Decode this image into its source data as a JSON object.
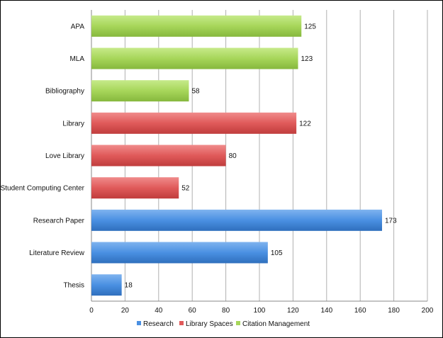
{
  "chart_data": {
    "type": "bar",
    "orientation": "horizontal",
    "categories": [
      "APA",
      "MLA",
      "Bibliography",
      "Library",
      "Love Library",
      "Student Computing Center",
      "Research Paper",
      "Literature Review",
      "Thesis"
    ],
    "values": [
      125,
      123,
      58,
      122,
      80,
      52,
      173,
      105,
      18
    ],
    "groups": [
      "Citation Management",
      "Citation Management",
      "Citation Management",
      "Library Spaces",
      "Library Spaces",
      "Library Spaces",
      "Research",
      "Research",
      "Research"
    ],
    "series": [
      {
        "name": "Research",
        "color": "#4A90E2"
      },
      {
        "name": "Library Spaces",
        "color": "#E05A5A"
      },
      {
        "name": "Citation Management",
        "color": "#A7D65A"
      }
    ],
    "xlim": [
      0,
      200
    ],
    "xticks": [
      "0",
      "20",
      "40",
      "60",
      "80",
      "100",
      "120",
      "140",
      "160",
      "180",
      "200"
    ],
    "grid": true,
    "legend_position": "bottom"
  }
}
